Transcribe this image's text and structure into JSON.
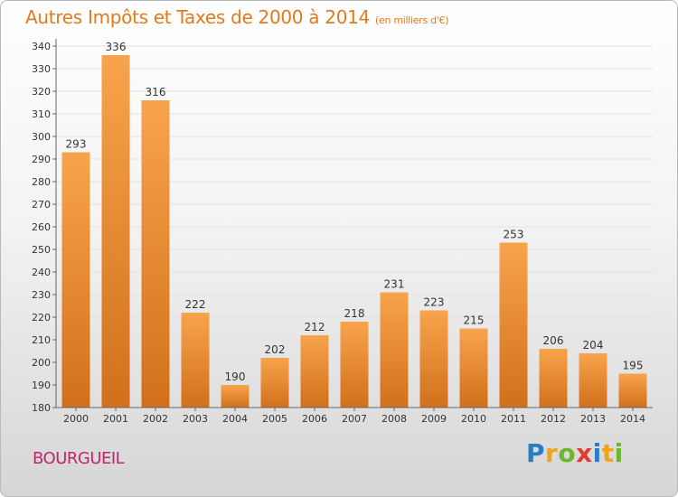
{
  "title": "Autres Impôts et Taxes de 2000 à 2014",
  "unit_note": "(en milliers d'€)",
  "place": "BOURGUEIL",
  "brand": {
    "letters": [
      "P",
      "r",
      "o",
      "x",
      "i",
      "t",
      "i"
    ],
    "colors": [
      "#2a7cc7",
      "#f0a418",
      "#6cb82a",
      "#e23b2e",
      "#2a7cc7",
      "#f0a418",
      "#6cb82a"
    ]
  },
  "colors": {
    "bar_light": "#f8a44c",
    "bar_dark": "#d2701b",
    "title": "#e07a1c",
    "place": "#c2256e"
  },
  "chart_data": {
    "type": "bar",
    "title": "Autres Impôts et Taxes de 2000 à 2014",
    "subtitle": "(en milliers d'€)",
    "xlabel": "",
    "ylabel": "",
    "categories": [
      "2000",
      "2001",
      "2002",
      "2003",
      "2004",
      "2005",
      "2006",
      "2007",
      "2008",
      "2009",
      "2010",
      "2011",
      "2012",
      "2013",
      "2014"
    ],
    "values": [
      293,
      336,
      316,
      222,
      190,
      202,
      212,
      218,
      231,
      223,
      215,
      253,
      206,
      204,
      195
    ],
    "ylim": [
      180,
      340
    ],
    "yticks": [
      180,
      190,
      200,
      210,
      220,
      230,
      240,
      250,
      260,
      270,
      280,
      290,
      300,
      310,
      320,
      330,
      340
    ],
    "grid": true,
    "legend": "none"
  }
}
